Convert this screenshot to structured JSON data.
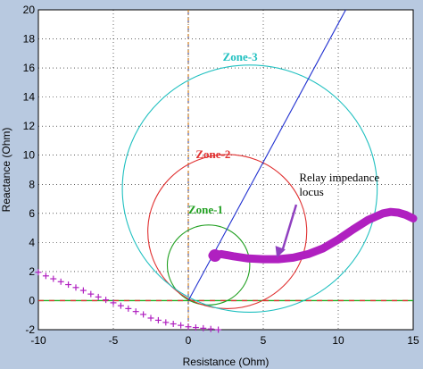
{
  "chart_data": {
    "type": "line",
    "title": "",
    "xlabel": "Resistance (Ohm)",
    "ylabel": "Reactance (Ohm)",
    "xlim": [
      -10,
      15
    ],
    "ylim": [
      -2,
      20
    ],
    "x_ticks": [
      -10,
      -5,
      0,
      5,
      10,
      15
    ],
    "y_ticks": [
      -2,
      0,
      2,
      4,
      6,
      8,
      10,
      12,
      14,
      16,
      18,
      20
    ],
    "x_tick_labels": [
      "-10",
      "-5",
      "0",
      "5",
      "10",
      "15"
    ],
    "y_tick_labels": [
      "-2",
      "0",
      "2",
      "4",
      "6",
      "8",
      "10",
      "12",
      "14",
      "16",
      "18",
      "20"
    ],
    "grid": true,
    "zones": [
      {
        "label": "Zone-1",
        "center": [
          1.35,
          2.45
        ],
        "radius": 2.75,
        "color": "#22a022",
        "label_pos": [
          0,
          6.0
        ]
      },
      {
        "label": "Zone-2",
        "center": [
          2.6,
          4.75
        ],
        "radius": 5.3,
        "color": "#e03030",
        "label_pos": [
          0.5,
          9.8
        ]
      },
      {
        "label": "Zone-3",
        "center": [
          4.1,
          7.7
        ],
        "radius": 8.5,
        "color": "#20c0c0",
        "label_pos": [
          2.3,
          16.5
        ]
      }
    ],
    "line_angle": {
      "x": [
        0,
        10.5
      ],
      "y": [
        0,
        20
      ],
      "color": "#2030d0"
    },
    "locus": {
      "name": "Relay impedance locus",
      "color": "#b020c0",
      "x": [
        1.6,
        2.2,
        3,
        4,
        5,
        6,
        7,
        8,
        9,
        10,
        11,
        12,
        13,
        13.5,
        14,
        14.5,
        15
      ],
      "y": [
        3.1,
        3.2,
        3.05,
        2.9,
        2.85,
        2.85,
        2.95,
        3.2,
        3.6,
        4.2,
        4.9,
        5.55,
        6.0,
        6.1,
        6.05,
        5.9,
        5.65
      ]
    },
    "plus_series": {
      "color": "#b020c0",
      "x": [
        -10,
        -9.5,
        -9,
        -8.5,
        -8,
        -7.5,
        -7,
        -6.5,
        -6,
        -5.5,
        -5,
        -4.5,
        -4,
        -3.5,
        -3,
        -2.5,
        -2,
        -1.5,
        -1,
        -0.5,
        0,
        0.5,
        1,
        1.5,
        2
      ],
      "y": [
        1.95,
        1.7,
        1.5,
        1.3,
        1.1,
        0.9,
        0.7,
        0.45,
        0.25,
        0.05,
        -0.15,
        -0.35,
        -0.55,
        -0.75,
        -0.95,
        -1.2,
        -1.35,
        -1.5,
        -1.6,
        -1.7,
        -1.8,
        -1.85,
        -1.9,
        -1.95,
        -2.0
      ]
    },
    "annotation": {
      "text_lines": [
        "Relay impedance",
        "locus"
      ],
      "text_pos": [
        7.4,
        8.2
      ],
      "arrow_from": [
        7.2,
        6.6
      ],
      "arrow_to": [
        5.9,
        2.95
      ]
    }
  }
}
